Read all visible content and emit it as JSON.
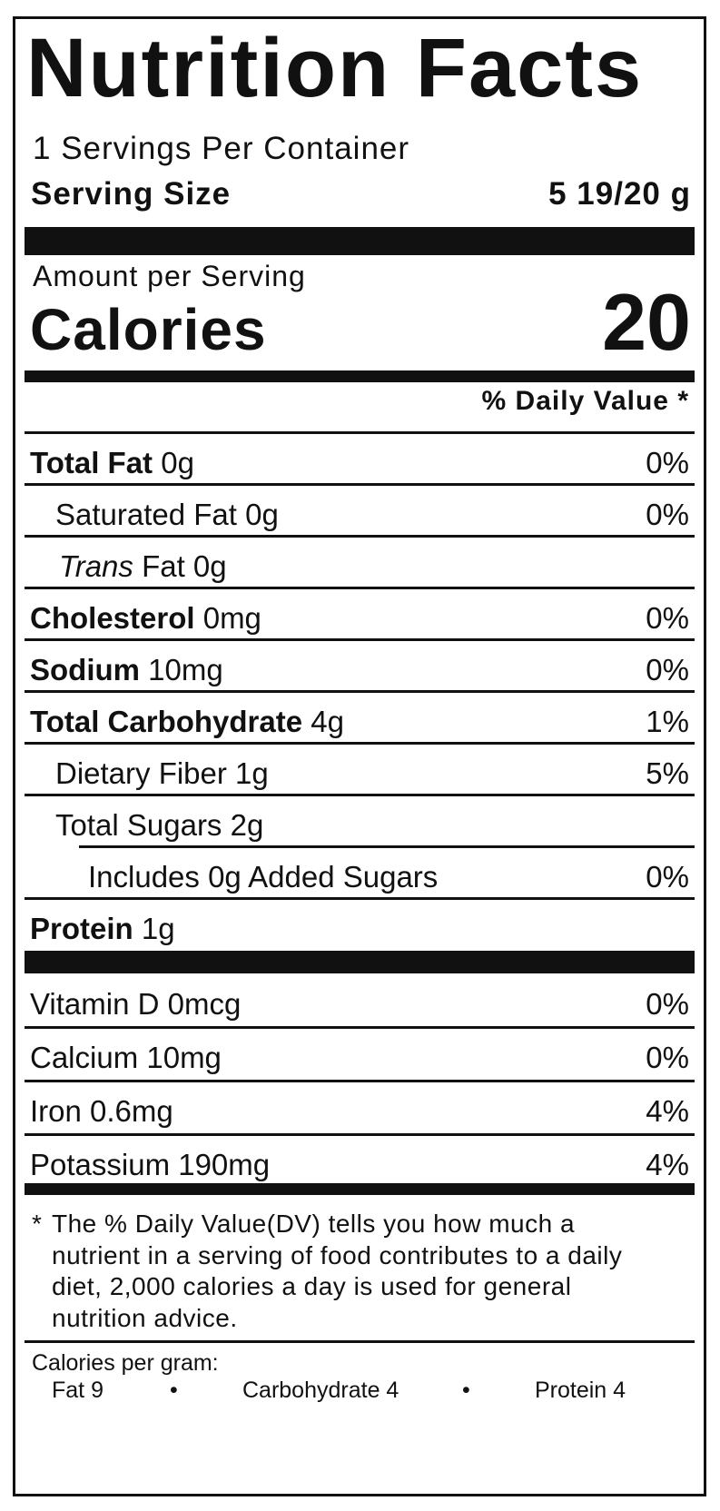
{
  "title": "Nutrition Facts",
  "servings_per_container": "1 Servings Per Container",
  "serving_size": {
    "label": "Serving Size",
    "value": "5 19/20 g"
  },
  "amount_per_serving": "Amount per Serving",
  "calories": {
    "label": "Calories",
    "value": "20"
  },
  "daily_value_header": "% Daily Value *",
  "nutrients": [
    {
      "bold": "Total Fat",
      "amount": " 0g",
      "dv": "0%"
    },
    {
      "name": "Saturated Fat 0g",
      "dv": "0%"
    },
    {
      "italic": "Trans",
      "rest": " Fat 0g"
    },
    {
      "bold": "Cholesterol",
      "amount": " 0mg",
      "dv": "0%"
    },
    {
      "bold": "Sodium",
      "amount": " 10mg",
      "dv": "0%"
    },
    {
      "bold": "Total Carbohydrate",
      "amount": " 4g",
      "dv": "1%"
    },
    {
      "name": "Dietary Fiber 1g",
      "dv": "5%"
    },
    {
      "name": "Total Sugars 2g"
    },
    {
      "name": "Includes 0g Added Sugars",
      "dv": "0%"
    },
    {
      "bold": "Protein",
      "amount": " 1g"
    }
  ],
  "vitamins": [
    {
      "name": "Vitamin D 0mcg",
      "dv": "0%"
    },
    {
      "name": "Calcium 10mg",
      "dv": "0%"
    },
    {
      "name": "Iron 0.6mg",
      "dv": "4%"
    },
    {
      "name": "Potassium 190mg",
      "dv": "4%"
    }
  ],
  "footnote": {
    "star": "*",
    "text": "The % Daily Value(DV) tells you how much a nutrient in a serving of food contributes to a daily diet, 2,000 calories a day is used for general nutrition advice."
  },
  "calories_per_gram": {
    "label": "Calories per gram:",
    "fat": "Fat 9",
    "carbohydrate": "Carbohydrate 4",
    "protein": "Protein 4",
    "separator": "•"
  }
}
